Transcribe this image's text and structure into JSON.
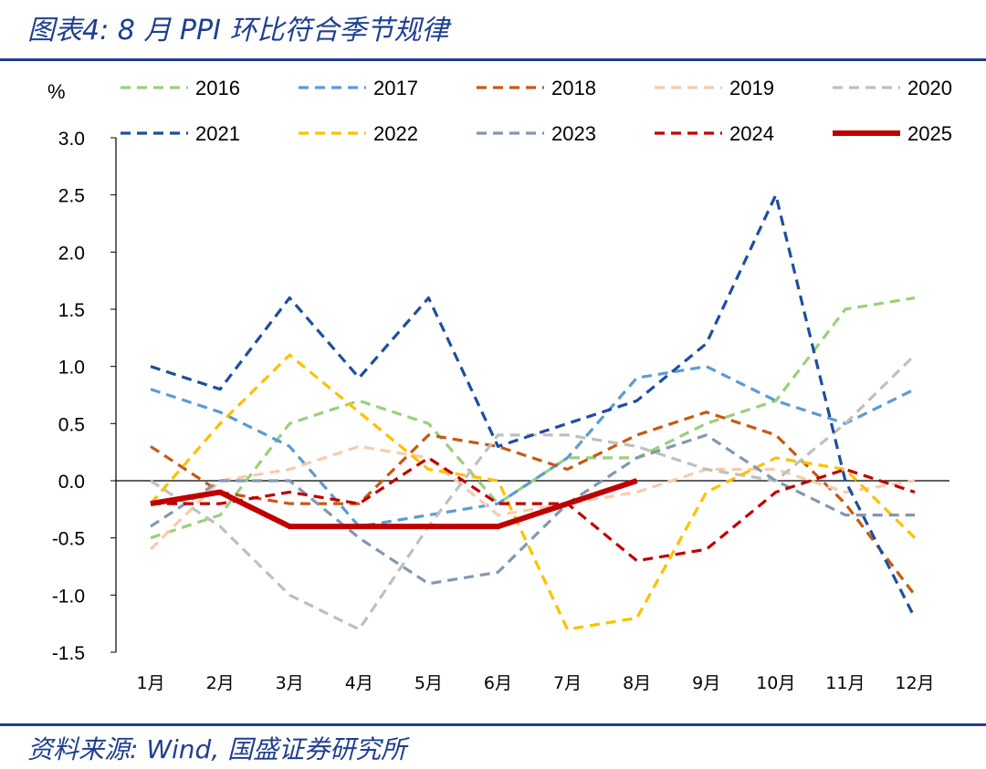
{
  "title": "图表4:  8 月 PPI 环比符合季节规律",
  "source": "资料来源:  Wind, 国盛证券研究所",
  "colors": {
    "accent": "#1f3f8f"
  },
  "chart_data": {
    "type": "line",
    "ylabel": "%",
    "ylim": [
      -1.5,
      3.0
    ],
    "yticks": [
      3.0,
      2.5,
      2.0,
      1.5,
      1.0,
      0.5,
      0.0,
      -0.5,
      -1.0,
      -1.5
    ],
    "ytick_labels": [
      "3.0",
      "2.5",
      "2.0",
      "1.5",
      "1.0",
      "0.5",
      "0.0",
      "-0.5",
      "-1.0",
      "-1.5"
    ],
    "categories": [
      "1月",
      "2月",
      "3月",
      "4月",
      "5月",
      "6月",
      "7月",
      "8月",
      "9月",
      "10月",
      "11月",
      "12月"
    ],
    "legend_position": "top",
    "series": [
      {
        "name": "2016",
        "color": "#9bcf7b",
        "dashed": true,
        "values": [
          -0.5,
          -0.3,
          0.5,
          0.7,
          0.5,
          -0.2,
          0.2,
          0.2,
          0.5,
          0.7,
          1.5,
          1.6
        ]
      },
      {
        "name": "2017",
        "color": "#5b9bd5",
        "dashed": true,
        "values": [
          0.8,
          0.6,
          0.3,
          -0.4,
          -0.3,
          -0.2,
          0.2,
          0.9,
          1.0,
          0.7,
          0.5,
          0.8
        ]
      },
      {
        "name": "2018",
        "color": "#c55a11",
        "dashed": true,
        "values": [
          0.3,
          -0.1,
          -0.2,
          -0.2,
          0.4,
          0.3,
          0.1,
          0.4,
          0.6,
          0.4,
          -0.2,
          -1.0
        ]
      },
      {
        "name": "2019",
        "color": "#f8cbad",
        "dashed": true,
        "values": [
          -0.6,
          0.0,
          0.1,
          0.3,
          0.2,
          -0.3,
          -0.2,
          -0.1,
          0.1,
          0.1,
          -0.1,
          0.0
        ]
      },
      {
        "name": "2020",
        "color": "#bfbfbf",
        "dashed": true,
        "values": [
          0.0,
          -0.4,
          -1.0,
          -1.3,
          -0.4,
          0.4,
          0.4,
          0.3,
          0.1,
          0.0,
          0.5,
          1.1
        ]
      },
      {
        "name": "2021",
        "color": "#1f4e9e",
        "dashed": true,
        "values": [
          1.0,
          0.8,
          1.6,
          0.9,
          1.6,
          0.3,
          0.5,
          0.7,
          1.2,
          2.5,
          0.0,
          -1.2
        ]
      },
      {
        "name": "2022",
        "color": "#ffc000",
        "dashed": true,
        "values": [
          -0.2,
          0.5,
          1.1,
          0.6,
          0.1,
          0.0,
          -1.3,
          -1.2,
          -0.1,
          0.2,
          0.1,
          -0.5
        ]
      },
      {
        "name": "2023",
        "color": "#8497b0",
        "dashed": true,
        "values": [
          -0.4,
          0.0,
          0.0,
          -0.5,
          -0.9,
          -0.8,
          -0.2,
          0.2,
          0.4,
          0.0,
          -0.3,
          -0.3
        ]
      },
      {
        "name": "2024",
        "color": "#c00000",
        "dashed": true,
        "values": [
          -0.2,
          -0.2,
          -0.1,
          -0.2,
          0.2,
          -0.2,
          -0.2,
          -0.7,
          -0.6,
          -0.1,
          0.1,
          -0.1
        ]
      },
      {
        "name": "2025",
        "color": "#c00000",
        "dashed": false,
        "values": [
          -0.2,
          -0.1,
          -0.4,
          -0.4,
          -0.4,
          -0.4,
          -0.2,
          0.0,
          null,
          null,
          null,
          null
        ]
      }
    ]
  }
}
